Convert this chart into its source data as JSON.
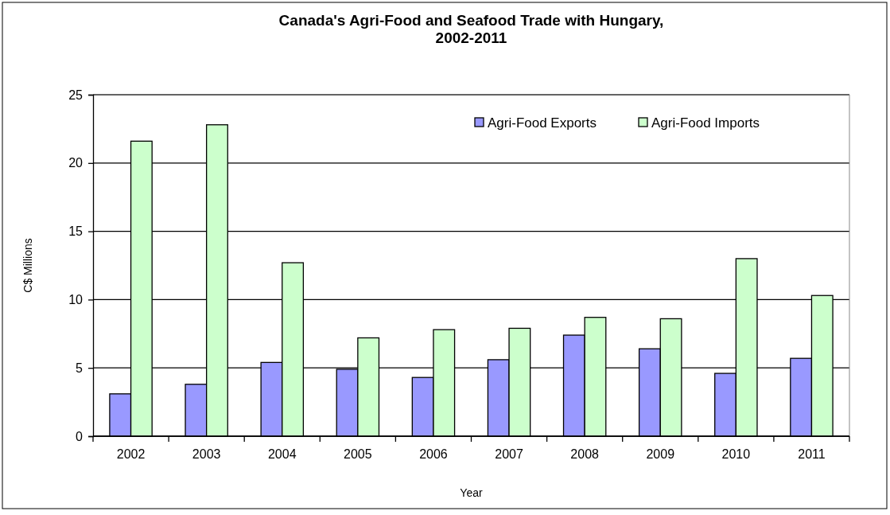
{
  "chart_data": {
    "type": "bar",
    "title": "Canada's Agri-Food and Seafood Trade with Hungary,\n2002-2011",
    "xlabel": "Year",
    "ylabel": "C$ Millions",
    "categories": [
      "2002",
      "2003",
      "2004",
      "2005",
      "2006",
      "2007",
      "2008",
      "2009",
      "2010",
      "2011"
    ],
    "series": [
      {
        "name": "Agri-Food Exports",
        "color": "#9999ff",
        "values": [
          3.1,
          3.8,
          5.4,
          4.9,
          4.3,
          5.6,
          7.4,
          6.4,
          4.6,
          5.7
        ]
      },
      {
        "name": "Agri-Food Imports",
        "color": "#ccffcc",
        "values": [
          21.6,
          22.8,
          12.7,
          7.2,
          7.8,
          7.9,
          8.7,
          8.6,
          13.0,
          10.3
        ]
      }
    ],
    "ylim": [
      0,
      25
    ],
    "yticks": [
      0,
      5,
      10,
      15,
      20,
      25
    ],
    "grid": "y",
    "legend": "top right"
  }
}
